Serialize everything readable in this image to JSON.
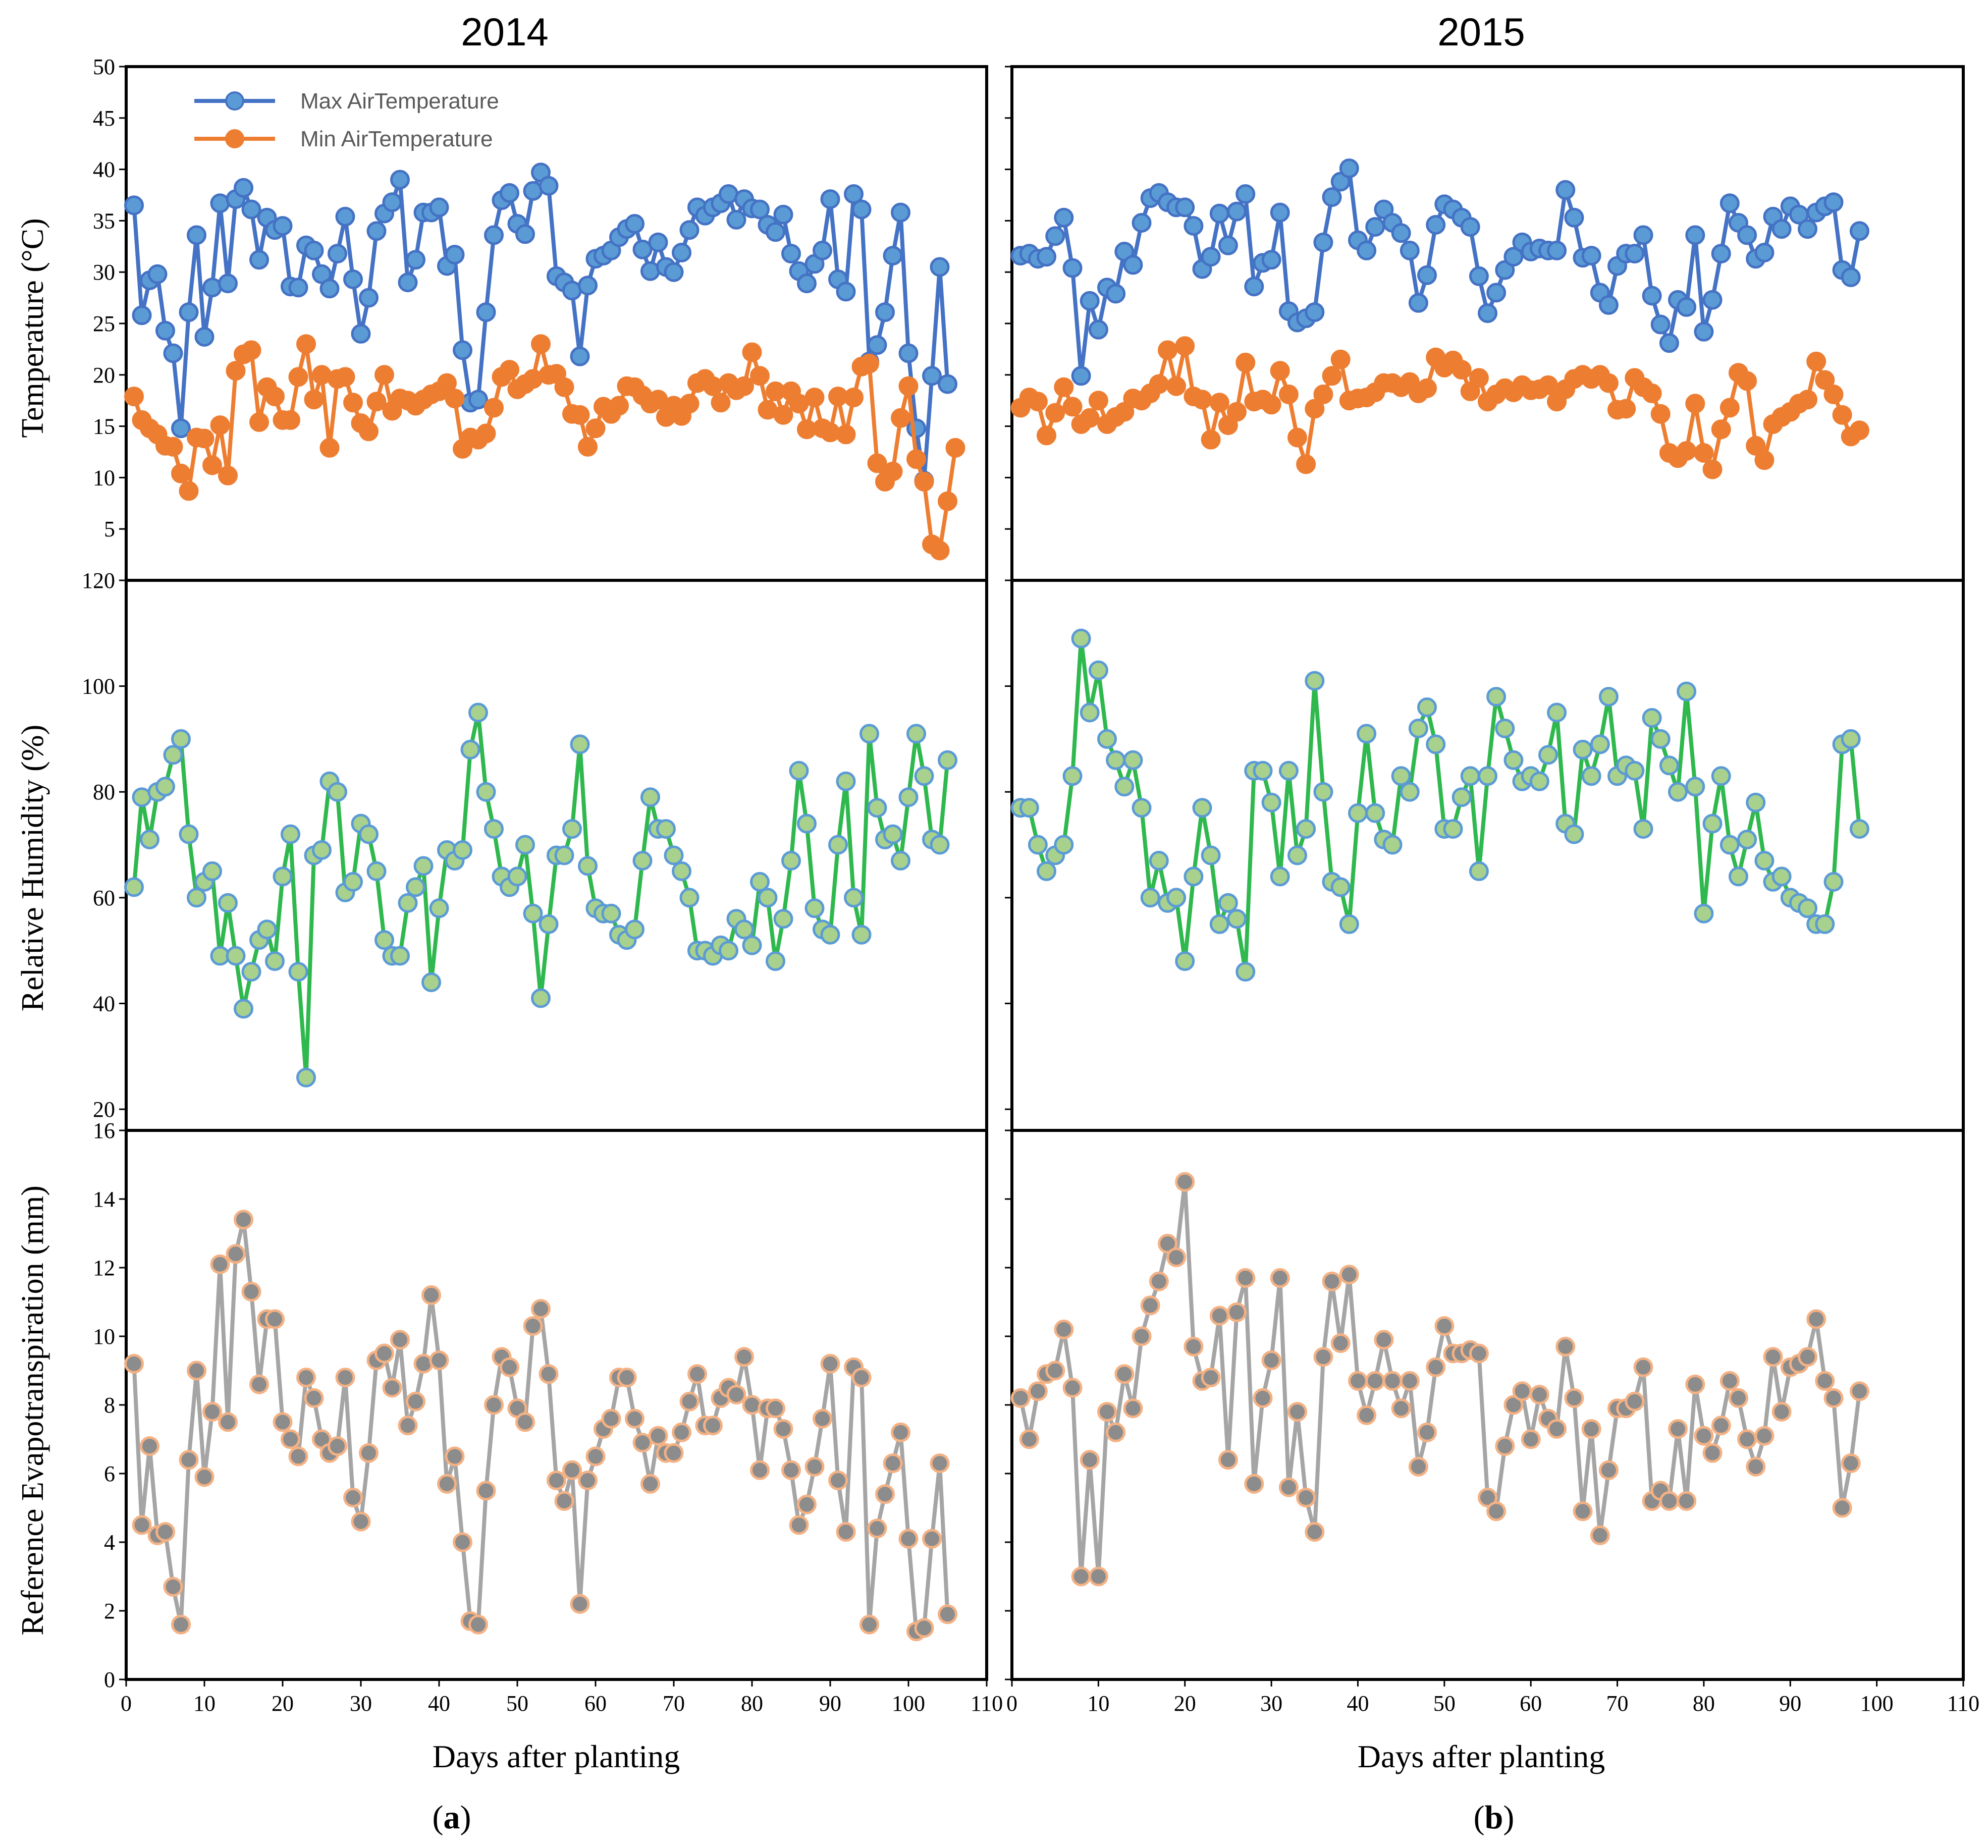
{
  "titles": {
    "left": "2014",
    "right": "2015"
  },
  "sublabels": {
    "left": {
      "open": "(",
      "letter": "a",
      "close": ")"
    },
    "right": {
      "open": "(",
      "letter": "b",
      "close": ")"
    }
  },
  "axis_labels": {
    "temperature": "Temperature (°C)",
    "humidity": "Relative Humidity (%)",
    "et": "Reference Evapotranspiration (mm)",
    "x_left": "Days after planting",
    "x_right": "Days after planting"
  },
  "legend": {
    "max_label": "Max AirTemperature",
    "min_label": "Min AirTemperature"
  },
  "colors": {
    "max": "#4472c4",
    "max_fill": "#5b9bd5",
    "min": "#ed7d31",
    "humidity_line": "#2eb84d",
    "humidity_fill": "#a9d18e",
    "humidity_edge": "#5b9bd5",
    "et_line": "#a5a5a5",
    "et_fill": "#8c8c8c",
    "et_edge": "#f4b183"
  },
  "chart_data": [
    {
      "id": "temp-2014",
      "type": "line",
      "title": "2014",
      "ylabel": "Temperature (°C)",
      "ylim": [
        0,
        50
      ],
      "xlim": [
        0,
        110
      ],
      "y_ticks": [
        5,
        10,
        15,
        20,
        25,
        30,
        35,
        40,
        45,
        50
      ],
      "y_tick_labels": [
        "5",
        "10",
        "15",
        "20",
        "25",
        "30",
        "35",
        "40",
        "45",
        "50"
      ],
      "series": [
        {
          "name": "Max AirTemperature",
          "values": [
            36.5,
            25.8,
            29.2,
            29.8,
            24.3,
            22.1,
            14.8,
            26.1,
            33.6,
            23.7,
            28.5,
            36.7,
            28.9,
            37.1,
            38.2,
            36.1,
            31.2,
            35.3,
            34.1,
            34.5,
            28.6,
            28.5,
            32.6,
            32.1,
            29.8,
            28.4,
            31.8,
            35.4,
            29.3,
            24.0,
            27.5,
            34.0,
            35.7,
            36.8,
            39.0,
            29.0,
            31.2,
            35.8,
            35.8,
            36.3,
            30.6,
            31.7,
            22.4,
            17.3,
            17.6,
            26.1,
            33.6,
            37.0,
            37.7,
            34.7,
            33.7,
            37.9,
            39.7,
            38.4,
            29.6,
            29.0,
            28.2,
            21.8,
            28.7,
            31.3,
            31.6,
            32.1,
            33.4,
            34.2,
            34.7,
            32.2,
            30.1,
            32.9,
            30.5,
            30.0,
            31.9,
            34.1,
            36.3,
            35.5,
            36.3,
            36.7,
            37.6,
            35.1,
            37.1,
            36.2,
            36.1,
            34.6,
            33.9,
            35.6,
            31.8,
            30.1,
            28.9,
            30.8,
            32.1,
            37.1,
            29.3,
            28.1,
            37.6,
            36.1,
            21.3,
            22.9,
            26.1,
            31.6,
            35.8,
            22.1,
            14.8,
            9.7,
            19.9,
            30.5,
            19.1
          ]
        },
        {
          "name": "Min AirTemperature",
          "values": [
            17.9,
            15.6,
            14.8,
            14.2,
            13.1,
            13.0,
            10.4,
            8.7,
            13.9,
            13.8,
            11.2,
            15.1,
            10.2,
            20.4,
            22.0,
            22.4,
            15.4,
            18.8,
            17.9,
            15.6,
            15.6,
            19.8,
            23.0,
            17.6,
            20.0,
            12.9,
            19.6,
            19.8,
            17.3,
            15.3,
            14.5,
            17.4,
            20.0,
            16.5,
            17.7,
            17.5,
            17.0,
            17.6,
            18.1,
            18.4,
            19.2,
            17.7,
            12.8,
            13.9,
            13.7,
            14.3,
            16.8,
            19.8,
            20.5,
            18.6,
            19.1,
            19.6,
            23.0,
            20.0,
            20.1,
            18.8,
            16.2,
            16.1,
            13.0,
            14.8,
            16.9,
            16.2,
            17.0,
            18.9,
            18.8,
            18.0,
            17.2,
            17.6,
            15.9,
            17.0,
            16.0,
            17.2,
            19.2,
            19.6,
            18.9,
            17.3,
            19.2,
            18.5,
            18.9,
            22.2,
            19.9,
            16.6,
            18.4,
            16.1,
            18.4,
            17.2,
            14.7,
            17.8,
            14.8,
            14.4,
            17.9,
            14.2,
            17.8,
            20.8,
            21.1,
            11.4,
            9.6,
            10.6,
            15.8,
            18.9,
            11.8,
            9.6,
            3.5,
            2.9,
            7.7,
            12.9
          ]
        }
      ]
    },
    {
      "id": "temp-2015",
      "type": "line",
      "title": "2015",
      "ylim": [
        0,
        50
      ],
      "xlim": [
        0,
        110
      ],
      "y_ticks": [
        5,
        10,
        15,
        20,
        25,
        30,
        35,
        40,
        45,
        50
      ],
      "y_tick_labels": [],
      "series": [
        {
          "name": "Max AirTemperature",
          "values": [
            31.6,
            31.8,
            31.3,
            31.5,
            33.5,
            35.3,
            30.4,
            19.9,
            27.2,
            24.4,
            28.5,
            27.9,
            32.0,
            30.7,
            34.8,
            37.2,
            37.7,
            36.8,
            36.3,
            36.3,
            34.5,
            30.3,
            31.5,
            35.7,
            32.6,
            35.9,
            37.6,
            28.6,
            30.9,
            31.2,
            35.8,
            26.2,
            25.1,
            25.5,
            26.1,
            32.9,
            37.3,
            38.8,
            40.1,
            33.1,
            32.1,
            34.4,
            36.1,
            34.8,
            33.8,
            32.1,
            27.0,
            29.7,
            34.6,
            36.6,
            36.1,
            35.3,
            34.4,
            29.6,
            26.0,
            28.0,
            30.2,
            31.5,
            32.9,
            32.0,
            32.3,
            32.1,
            32.1,
            38.0,
            35.3,
            31.4,
            31.6,
            28.0,
            26.8,
            30.6,
            31.8,
            31.8,
            33.6,
            27.7,
            24.9,
            23.1,
            27.3,
            26.6,
            33.6,
            24.2,
            27.3,
            31.8,
            36.7,
            34.8,
            33.6,
            31.3,
            31.9,
            35.4,
            34.2,
            36.4,
            35.6,
            34.2,
            35.8,
            36.4,
            36.8,
            30.2,
            29.5,
            34.0
          ]
        },
        {
          "name": "Min AirTemperature",
          "values": [
            16.8,
            17.8,
            17.4,
            14.1,
            16.3,
            18.8,
            16.9,
            15.2,
            15.8,
            17.5,
            15.2,
            15.9,
            16.4,
            17.7,
            17.5,
            18.2,
            19.1,
            22.4,
            18.9,
            22.8,
            17.9,
            17.6,
            13.7,
            17.3,
            15.1,
            16.4,
            21.2,
            17.4,
            17.6,
            17.1,
            20.4,
            18.1,
            13.9,
            11.3,
            16.7,
            18.1,
            19.9,
            21.5,
            17.5,
            17.7,
            17.8,
            18.3,
            19.2,
            19.2,
            18.8,
            19.3,
            18.2,
            18.7,
            21.7,
            20.7,
            21.4,
            20.5,
            18.4,
            19.7,
            17.4,
            18.1,
            18.7,
            18.3,
            19.0,
            18.5,
            18.6,
            19.0,
            17.4,
            18.6,
            19.6,
            20.0,
            19.6,
            20.0,
            19.2,
            16.6,
            16.7,
            19.7,
            18.8,
            18.2,
            16.2,
            12.4,
            11.9,
            12.6,
            17.2,
            12.4,
            10.8,
            14.7,
            16.8,
            20.2,
            19.4,
            13.1,
            11.7,
            15.2,
            15.9,
            16.4,
            17.2,
            17.6,
            21.3,
            19.5,
            18.1,
            16.1,
            14.0,
            14.6
          ]
        }
      ]
    },
    {
      "id": "rh-2014",
      "type": "line",
      "ylabel": "Relative Humidity (%)",
      "ylim": [
        16,
        120
      ],
      "xlim": [
        0,
        110
      ],
      "y_ticks": [
        20,
        40,
        60,
        80,
        100,
        120
      ],
      "y_tick_labels": [
        "20",
        "40",
        "60",
        "80",
        "100",
        "120"
      ],
      "series": [
        {
          "name": "Relative Humidity",
          "values": [
            62,
            79,
            71,
            80,
            81,
            87,
            90,
            72,
            60,
            63,
            65,
            49,
            59,
            49,
            39,
            46,
            52,
            54,
            48,
            64,
            72,
            46,
            26,
            68,
            69,
            82,
            80,
            61,
            63,
            74,
            72,
            65,
            52,
            49,
            49,
            59,
            62,
            66,
            44,
            58,
            69,
            67,
            69,
            88,
            95,
            80,
            73,
            64,
            62,
            64,
            70,
            57,
            41,
            55,
            68,
            68,
            73,
            89,
            66,
            58,
            57,
            57,
            53,
            52,
            54,
            67,
            79,
            73,
            73,
            68,
            65,
            60,
            50,
            50,
            49,
            51,
            50,
            56,
            54,
            51,
            63,
            60,
            48,
            56,
            67,
            84,
            74,
            58,
            54,
            53,
            70,
            82,
            60,
            53,
            91,
            77,
            71,
            72,
            67,
            79,
            91,
            83,
            71,
            70,
            86
          ]
        }
      ]
    },
    {
      "id": "rh-2015",
      "type": "line",
      "ylim": [
        16,
        120
      ],
      "xlim": [
        0,
        110
      ],
      "y_ticks": [
        20,
        40,
        60,
        80,
        100,
        120
      ],
      "y_tick_labels": [],
      "series": [
        {
          "name": "Relative Humidity",
          "values": [
            77,
            77,
            70,
            65,
            68,
            70,
            83,
            109,
            95,
            103,
            90,
            86,
            81,
            86,
            77,
            60,
            67,
            59,
            60,
            48,
            64,
            77,
            68,
            55,
            59,
            56,
            46,
            84,
            84,
            78,
            64,
            84,
            68,
            73,
            101,
            80,
            63,
            62,
            55,
            76,
            91,
            76,
            71,
            70,
            83,
            80,
            92,
            96,
            89,
            73,
            73,
            79,
            83,
            65,
            83,
            98,
            92,
            86,
            82,
            83,
            82,
            87,
            95,
            74,
            72,
            88,
            83,
            89,
            98,
            83,
            85,
            84,
            73,
            94,
            90,
            85,
            80,
            99,
            81,
            57,
            74,
            83,
            70,
            64,
            71,
            78,
            67,
            63,
            64,
            60,
            59,
            58,
            55,
            55,
            63,
            89,
            90,
            73
          ]
        }
      ]
    },
    {
      "id": "et-2014",
      "type": "line",
      "ylabel": "Reference Evapotranspiration (mm)",
      "xlabel": "Days after planting",
      "ylim": [
        0,
        16
      ],
      "xlim": [
        0,
        110
      ],
      "y_ticks": [
        0,
        2,
        4,
        6,
        8,
        10,
        12,
        14,
        16
      ],
      "y_tick_labels": [
        "0",
        "2",
        "4",
        "6",
        "8",
        "10",
        "12",
        "14",
        "16"
      ],
      "x_ticks": [
        0,
        10,
        20,
        30,
        40,
        50,
        60,
        70,
        80,
        90,
        100,
        110
      ],
      "x_tick_labels": [
        "0",
        "10",
        "20",
        "30",
        "40",
        "50",
        "60",
        "70",
        "80",
        "90",
        "100",
        "110"
      ],
      "series": [
        {
          "name": "Reference Evapotranspiration",
          "values": [
            9.2,
            4.5,
            6.8,
            4.2,
            4.3,
            2.7,
            1.6,
            6.4,
            9.0,
            5.9,
            7.8,
            12.1,
            7.5,
            12.4,
            13.4,
            11.3,
            8.6,
            10.5,
            10.5,
            7.5,
            7.0,
            6.5,
            8.8,
            8.2,
            7.0,
            6.6,
            6.8,
            8.8,
            5.3,
            4.6,
            6.6,
            9.3,
            9.5,
            8.5,
            9.9,
            7.4,
            8.1,
            9.2,
            11.2,
            9.3,
            5.7,
            6.5,
            4.0,
            1.7,
            1.6,
            5.5,
            8.0,
            9.4,
            9.1,
            7.9,
            7.5,
            10.3,
            10.8,
            8.9,
            5.8,
            5.2,
            6.1,
            2.2,
            5.8,
            6.5,
            7.3,
            7.6,
            8.8,
            8.8,
            7.6,
            6.9,
            5.7,
            7.1,
            6.6,
            6.6,
            7.2,
            8.1,
            8.9,
            7.4,
            7.4,
            8.2,
            8.5,
            8.3,
            9.4,
            8.0,
            6.1,
            7.9,
            7.9,
            7.3,
            6.1,
            4.5,
            5.1,
            6.2,
            7.6,
            9.2,
            5.8,
            4.3,
            9.1,
            8.8,
            1.6,
            4.4,
            5.4,
            6.3,
            7.2,
            4.1,
            1.4,
            1.5,
            4.1,
            6.3,
            1.9
          ]
        }
      ]
    },
    {
      "id": "et-2015",
      "type": "line",
      "xlabel": "Days after planting",
      "ylim": [
        0,
        16
      ],
      "xlim": [
        0,
        110
      ],
      "y_ticks": [
        0,
        2,
        4,
        6,
        8,
        10,
        12,
        14,
        16
      ],
      "y_tick_labels": [],
      "x_ticks": [
        0,
        10,
        20,
        30,
        40,
        50,
        60,
        70,
        80,
        90,
        100,
        110
      ],
      "x_tick_labels": [
        "0",
        "10",
        "20",
        "30",
        "40",
        "50",
        "60",
        "70",
        "80",
        "90",
        "100",
        "110"
      ],
      "series": [
        {
          "name": "Reference Evapotranspiration",
          "values": [
            8.2,
            7.0,
            8.4,
            8.9,
            9.0,
            10.2,
            8.5,
            3.0,
            6.4,
            3.0,
            7.8,
            7.2,
            8.9,
            7.9,
            10.0,
            10.9,
            11.6,
            12.7,
            12.3,
            14.5,
            9.7,
            8.7,
            8.8,
            10.6,
            6.4,
            10.7,
            11.7,
            5.7,
            8.2,
            9.3,
            11.7,
            5.6,
            7.8,
            5.3,
            4.3,
            9.4,
            11.6,
            9.8,
            11.8,
            8.7,
            7.7,
            8.7,
            9.9,
            8.7,
            7.9,
            8.7,
            6.2,
            7.2,
            9.1,
            10.3,
            9.5,
            9.5,
            9.6,
            9.5,
            5.3,
            4.9,
            6.8,
            8.0,
            8.4,
            7.0,
            8.3,
            7.6,
            7.3,
            9.7,
            8.2,
            4.9,
            7.3,
            4.2,
            6.1,
            7.9,
            7.9,
            8.1,
            9.1,
            5.2,
            5.5,
            5.2,
            7.3,
            5.2,
            8.6,
            7.1,
            6.6,
            7.4,
            8.7,
            8.2,
            7.0,
            6.2,
            7.1,
            9.4,
            7.8,
            9.1,
            9.2,
            9.4,
            10.5,
            8.7,
            8.2,
            5.0,
            6.3,
            8.4
          ]
        }
      ]
    }
  ]
}
